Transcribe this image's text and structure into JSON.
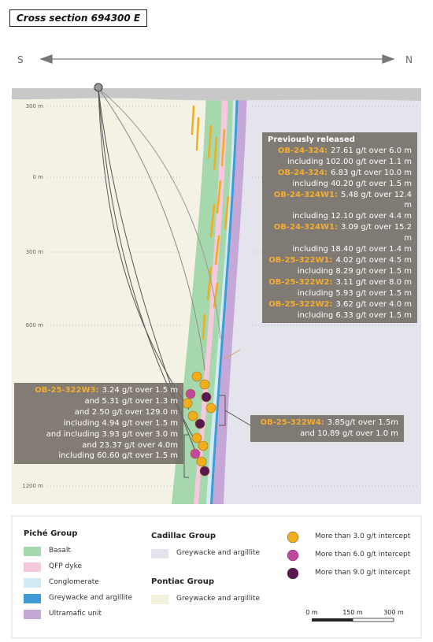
{
  "title": "Cross section 694300 E",
  "compass": {
    "south": "S",
    "north": "N"
  },
  "depth_labels": [
    "300 m",
    "0 m",
    "300 m",
    "600 m",
    "1200 m"
  ],
  "previously_released": {
    "heading": "Previously released",
    "lines": [
      {
        "hole": "OB-24-324:",
        "text": "27.61 g/t over 6.0 m"
      },
      {
        "text": "including 102.00 g/t over 1.1 m"
      },
      {
        "hole": "OB-24-324:",
        "text": "6.83 g/t over 10.0 m"
      },
      {
        "text": "including 40.20 g/t over 1.5 m"
      },
      {
        "hole": "OB-24-324W1:",
        "text": "5.48 g/t over 12.4 m"
      },
      {
        "text": "including 12.10 g/t over 4.4 m"
      },
      {
        "hole": "OB-24-324W1:",
        "text": "3.09 g/t over 15.2 m"
      },
      {
        "text": "including 18.40 g/t over 1.4 m"
      },
      {
        "hole": "OB-25-322W1:",
        "text": "4.02 g/t over 4.5 m"
      },
      {
        "text": "including 8.29 g/t over 1.5 m"
      },
      {
        "hole": "OB-25-322W2:",
        "text": "3.11 g/t over 8.0 m"
      },
      {
        "text": "including 5.93 g/t over 1.5 m"
      },
      {
        "hole": "OB-25-322W2:",
        "text": "3.62 g/t over 4.0 m"
      },
      {
        "text": "including 6.33 g/t over 1.5 m"
      }
    ]
  },
  "callout_w3": {
    "lines": [
      {
        "hole": "OB-25-322W3:",
        "text": "3.24 g/t over 1.5 m"
      },
      {
        "text": "and 5.31 g/t over 1.3 m"
      },
      {
        "text": "and 2.50 g/t over 129.0 m"
      },
      {
        "text": "including 4.94 g/t over 1.5 m"
      },
      {
        "text": "and including 3.93 g/t over 3.0 m"
      },
      {
        "text": "and 23.37 g/t over 4.0m"
      },
      {
        "text": "including 60.60 g/t over 1.5 m"
      }
    ]
  },
  "callout_w4": {
    "lines": [
      {
        "hole": "OB-25-322W4:",
        "text": "3.85g/t over 1.5m"
      },
      {
        "text": "and 10.89 g/t over 1.0 m"
      }
    ]
  },
  "legend": {
    "groups": [
      {
        "title": "Piché Group",
        "items": [
          {
            "label": "Basalt",
            "color": "#a6d8ae"
          },
          {
            "label": "QFP dyke",
            "color": "#f7c8de"
          },
          {
            "label": "Conglomerate",
            "color": "#d0ebf6"
          },
          {
            "label": "Greywacke and argillite",
            "color": "#3d9bd6"
          },
          {
            "label": "Ultramafic unit",
            "color": "#c6a8d8"
          }
        ]
      },
      {
        "title": "Cadillac Group",
        "items": [
          {
            "label": "Greywacke and argillite",
            "color": "#e3e3ec"
          }
        ]
      },
      {
        "title": "Pontiac Group",
        "items": [
          {
            "label": "Greywacke and argillite",
            "color": "#f1f1de"
          }
        ]
      }
    ],
    "intercepts": [
      {
        "label": "More than 3.0 g/t intercept",
        "color": "#f2ad1c"
      },
      {
        "label": "More than 6.0 g/t intercept",
        "color": "#c2479f"
      },
      {
        "label": "More than 9.0 g/t intercept",
        "color": "#5a1650"
      }
    ]
  },
  "scale": {
    "labels": [
      "0 m",
      "150 m",
      "300 m"
    ]
  }
}
